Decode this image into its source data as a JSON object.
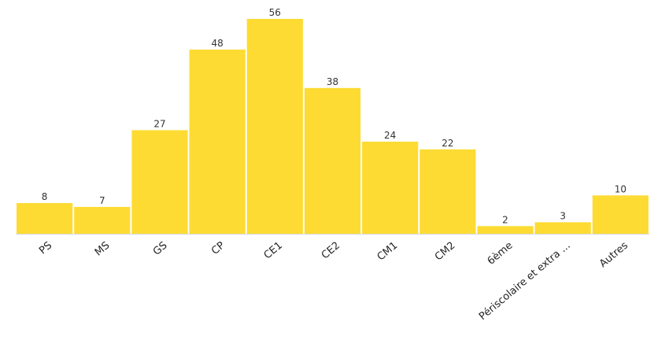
{
  "chart_data": {
    "type": "bar",
    "categories": [
      "PS",
      "MS",
      "GS",
      "CP",
      "CE1",
      "CE2",
      "CM1",
      "CM2",
      "6ème",
      "Périscolaire et extra ...",
      "Autres"
    ],
    "values": [
      8,
      7,
      27,
      48,
      56,
      38,
      24,
      22,
      2,
      3,
      10
    ],
    "title": "",
    "xlabel": "",
    "ylabel": "",
    "ylim": [
      0,
      56
    ],
    "grid": false,
    "legend": "none",
    "bar_color": "#FDDB33",
    "data_labels": true
  }
}
